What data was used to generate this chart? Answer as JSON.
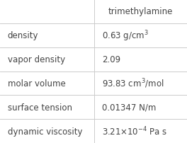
{
  "header": [
    "",
    "trimethylamine"
  ],
  "rows": [
    [
      "density",
      "0.63 g/cm$^3$"
    ],
    [
      "vapor density",
      "2.09"
    ],
    [
      "molar volume",
      "93.83 cm$^3$/mol"
    ],
    [
      "surface tension",
      "0.01347 N/m"
    ],
    [
      "dynamic viscosity",
      "3.21×10$^{-4}$ Pa s"
    ]
  ],
  "background_color": "#ffffff",
  "line_color": "#cccccc",
  "text_color": "#444444",
  "header_fontsize": 8.5,
  "cell_fontsize": 8.5,
  "col_split": 0.505,
  "fig_width": 2.64,
  "fig_height": 2.03,
  "dpi": 100
}
